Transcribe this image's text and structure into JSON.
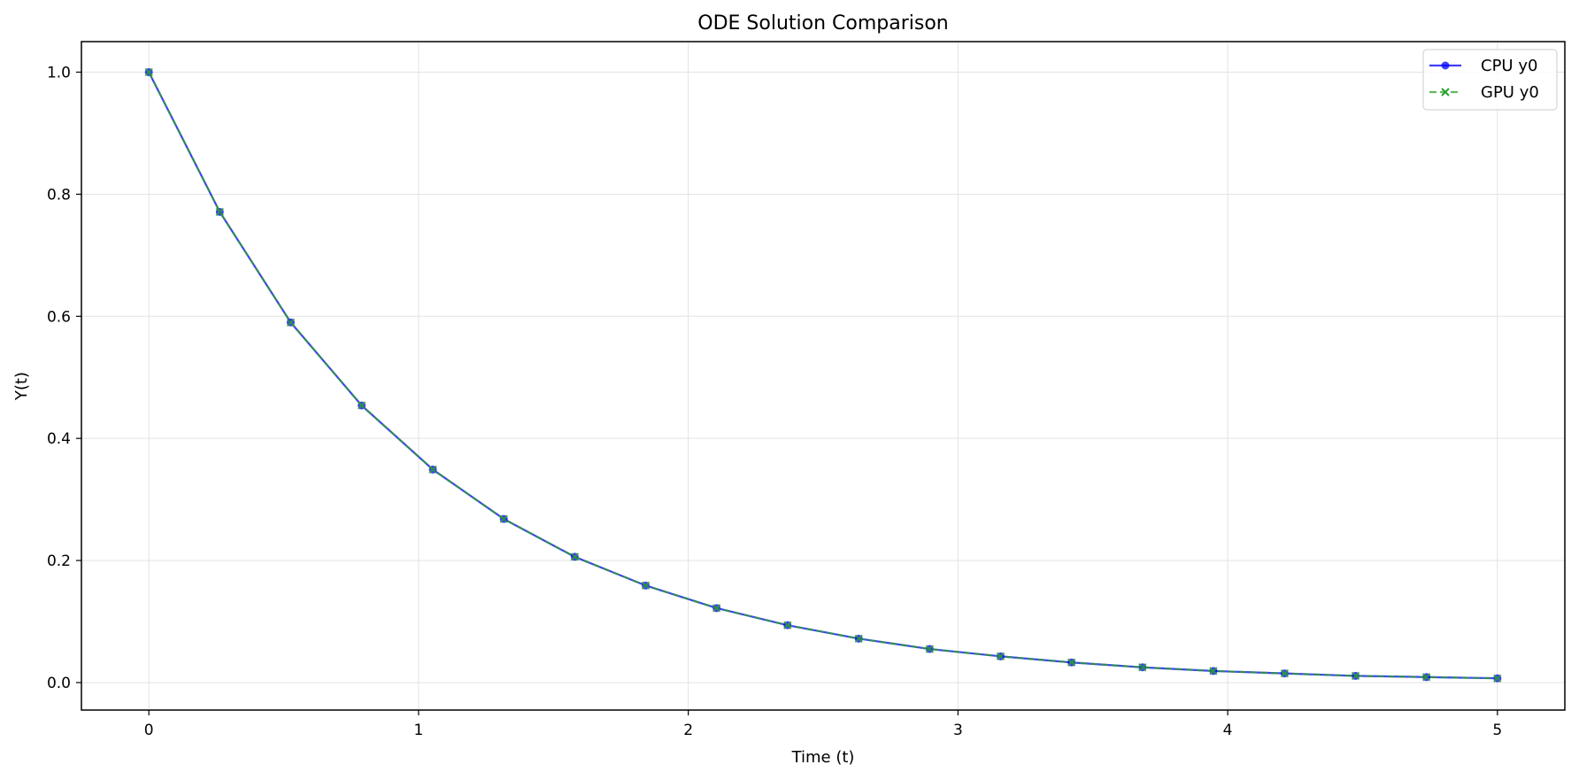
{
  "chart_data": {
    "type": "line",
    "title": "ODE Solution Comparison",
    "xlabel": "Time (t)",
    "ylabel": "Y(t)",
    "xlim": [
      -0.25,
      5.25
    ],
    "ylim": [
      -0.045,
      1.05
    ],
    "xticks": [
      0,
      1,
      2,
      3,
      4,
      5
    ],
    "yticks": [
      0.0,
      0.2,
      0.4,
      0.6,
      0.8,
      1.0
    ],
    "xtick_labels": [
      "0",
      "1",
      "2",
      "3",
      "4",
      "5"
    ],
    "ytick_labels": [
      "0.0",
      "0.2",
      "0.4",
      "0.6",
      "0.8",
      "1.0"
    ],
    "grid": true,
    "legend_position": "top-right",
    "x": [
      0,
      0.263,
      0.526,
      0.789,
      1.053,
      1.316,
      1.579,
      1.842,
      2.105,
      2.368,
      2.632,
      2.895,
      3.158,
      3.421,
      3.684,
      3.947,
      4.211,
      4.474,
      4.737,
      5.0
    ],
    "series": [
      {
        "name": "CPU y0",
        "color": "#0000ff",
        "linestyle": "solid",
        "marker": "circle",
        "values": [
          1.0,
          0.771,
          0.59,
          0.454,
          0.349,
          0.268,
          0.206,
          0.159,
          0.122,
          0.094,
          0.072,
          0.055,
          0.043,
          0.033,
          0.025,
          0.019,
          0.015,
          0.011,
          0.009,
          0.007
        ]
      },
      {
        "name": "GPU y0",
        "color": "#2ca02c",
        "linestyle": "dashed",
        "marker": "x",
        "values": [
          1.0,
          0.771,
          0.59,
          0.454,
          0.349,
          0.268,
          0.206,
          0.159,
          0.122,
          0.094,
          0.072,
          0.055,
          0.043,
          0.033,
          0.025,
          0.019,
          0.015,
          0.011,
          0.009,
          0.007
        ]
      }
    ]
  }
}
